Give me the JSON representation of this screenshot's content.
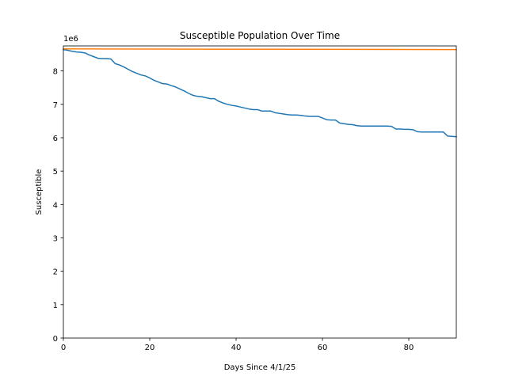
{
  "chart_data": {
    "type": "line",
    "title": "Susceptible Population Over Time",
    "xlabel": "Days Since 4/1/25",
    "ylabel": "Susceptible",
    "y_offset_label": "1e6",
    "xlim": [
      0,
      91
    ],
    "ylim": [
      0,
      8.75
    ],
    "x_ticks": [
      0,
      20,
      40,
      60,
      80
    ],
    "x_tick_labels": [
      "0",
      "20",
      "40",
      "60",
      "80"
    ],
    "y_ticks": [
      0,
      1,
      2,
      3,
      4,
      5,
      6,
      7,
      8
    ],
    "y_tick_labels": [
      "0",
      "1",
      "2",
      "3",
      "4",
      "5",
      "6",
      "7",
      "8"
    ],
    "grid": false,
    "series": [
      {
        "color": "#1f77b4",
        "x": [
          0,
          1,
          2,
          3,
          4,
          5,
          6,
          7,
          8,
          9,
          10,
          11,
          12,
          13,
          14,
          15,
          16,
          17,
          18,
          19,
          20,
          21,
          22,
          23,
          24,
          25,
          26,
          27,
          28,
          29,
          30,
          31,
          32,
          33,
          34,
          35,
          36,
          37,
          38,
          39,
          40,
          41,
          42,
          43,
          44,
          45,
          46,
          47,
          48,
          49,
          50,
          51,
          52,
          53,
          54,
          55,
          56,
          57,
          58,
          59,
          60,
          61,
          62,
          63,
          64,
          65,
          66,
          67,
          68,
          69,
          70,
          71,
          72,
          73,
          74,
          75,
          76,
          77,
          78,
          79,
          80,
          81,
          82,
          83,
          84,
          85,
          86,
          87,
          88,
          89,
          90,
          91
        ],
        "y": [
          8.64,
          8.62,
          8.59,
          8.57,
          8.56,
          8.54,
          8.48,
          8.43,
          8.38,
          8.37,
          8.37,
          8.36,
          8.22,
          8.18,
          8.12,
          8.05,
          7.98,
          7.93,
          7.88,
          7.85,
          7.79,
          7.72,
          7.67,
          7.62,
          7.61,
          7.56,
          7.52,
          7.46,
          7.4,
          7.33,
          7.27,
          7.24,
          7.23,
          7.2,
          7.17,
          7.17,
          7.09,
          7.04,
          7.0,
          6.97,
          6.95,
          6.92,
          6.89,
          6.86,
          6.84,
          6.84,
          6.8,
          6.8,
          6.8,
          6.75,
          6.73,
          6.71,
          6.69,
          6.68,
          6.68,
          6.67,
          6.65,
          6.64,
          6.64,
          6.64,
          6.59,
          6.54,
          6.53,
          6.53,
          6.44,
          6.42,
          6.4,
          6.39,
          6.36,
          6.35,
          6.35,
          6.35,
          6.35,
          6.35,
          6.35,
          6.35,
          6.34,
          6.26,
          6.26,
          6.25,
          6.25,
          6.24,
          6.18,
          6.17,
          6.17,
          6.17,
          6.17,
          6.17,
          6.17,
          6.05,
          6.04,
          6.03
        ]
      },
      {
        "color": "#ff7f0e",
        "x": [
          0,
          91
        ],
        "y": [
          8.66,
          8.64
        ]
      }
    ]
  }
}
